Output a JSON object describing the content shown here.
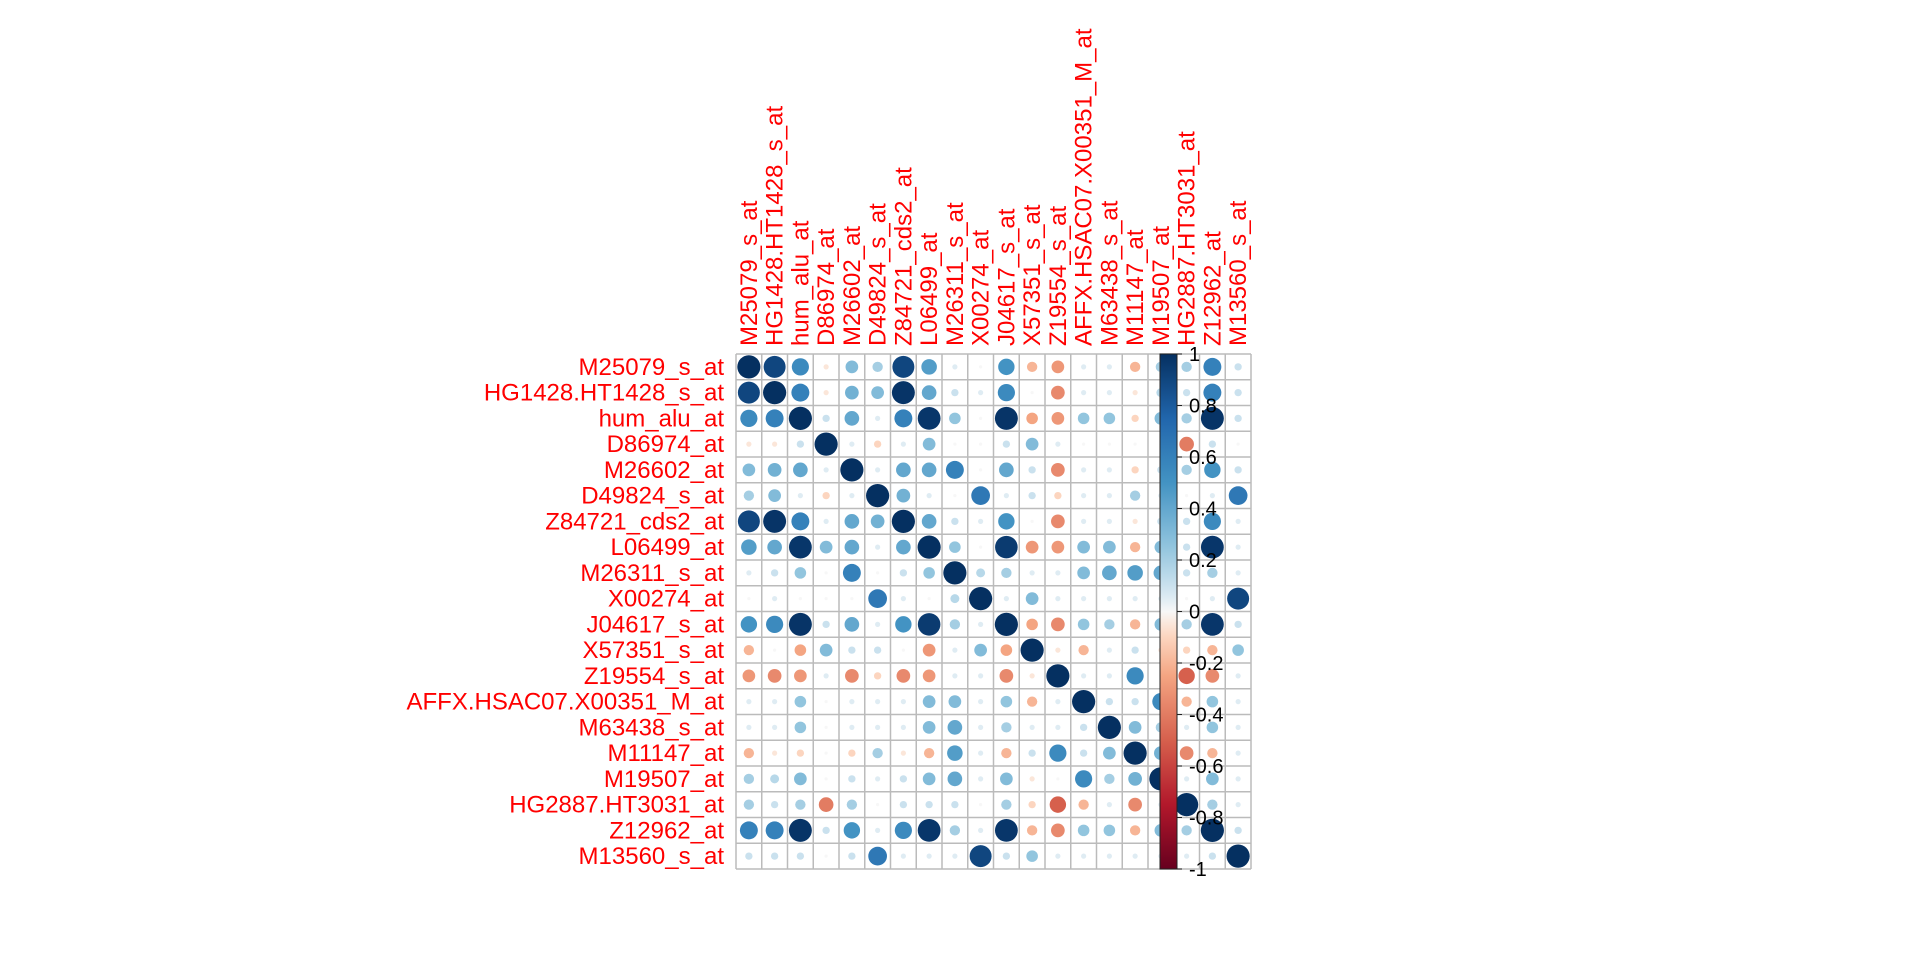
{
  "chart_data": {
    "type": "heatmap",
    "subtype": "correlation-circle",
    "variables": [
      "M25079_s_at",
      "HG1428.HT1428_s_at",
      "hum_alu_at",
      "D86974_at",
      "M26602_at",
      "D49824_s_at",
      "Z84721_cds2_at",
      "L06499_at",
      "M26311_s_at",
      "X00274_at",
      "J04617_s_at",
      "X57351_s_at",
      "Z19554_s_at",
      "AFFX.HSAC07.X00351_M_at",
      "M63438_s_at",
      "M11147_at",
      "M19507_at",
      "HG2887.HT3031_at",
      "Z12962_at",
      "M13560_s_at"
    ],
    "matrix": [
      [
        1.0,
        0.9,
        0.55,
        -0.05,
        0.3,
        0.2,
        0.9,
        0.45,
        0.05,
        0.0,
        0.5,
        -0.2,
        -0.3,
        0.05,
        0.05,
        -0.2,
        0.2,
        0.2,
        0.6,
        0.1
      ],
      [
        0.9,
        1.0,
        0.6,
        -0.05,
        0.35,
        0.3,
        0.98,
        0.4,
        0.1,
        0.05,
        0.55,
        0.0,
        -0.35,
        0.05,
        0.05,
        -0.05,
        0.15,
        0.1,
        0.6,
        0.1
      ],
      [
        0.55,
        0.6,
        1.0,
        0.1,
        0.4,
        0.05,
        0.6,
        0.97,
        0.25,
        0.0,
        0.98,
        -0.25,
        -0.3,
        0.25,
        0.25,
        -0.1,
        0.3,
        0.2,
        0.98,
        0.1
      ],
      [
        -0.05,
        -0.05,
        0.1,
        1.0,
        0.05,
        -0.1,
        0.05,
        0.3,
        0.0,
        0.0,
        0.1,
        0.3,
        0.05,
        0.0,
        0.0,
        0.0,
        0.0,
        -0.4,
        0.1,
        0.0
      ],
      [
        0.3,
        0.35,
        0.4,
        0.05,
        1.0,
        0.05,
        0.4,
        0.4,
        0.6,
        0.0,
        0.4,
        0.1,
        -0.35,
        0.05,
        0.05,
        -0.1,
        0.1,
        0.2,
        0.5,
        0.1
      ],
      [
        0.2,
        0.3,
        0.05,
        -0.1,
        0.05,
        1.0,
        0.35,
        0.05,
        0.0,
        0.65,
        0.05,
        0.1,
        -0.1,
        0.05,
        0.05,
        0.2,
        0.05,
        0.0,
        0.05,
        0.65
      ],
      [
        0.9,
        0.98,
        0.6,
        0.05,
        0.4,
        0.35,
        1.0,
        0.4,
        0.1,
        0.05,
        0.5,
        0.0,
        -0.35,
        0.05,
        0.05,
        -0.05,
        0.1,
        0.1,
        0.55,
        0.05
      ],
      [
        0.45,
        0.4,
        0.97,
        0.3,
        0.4,
        0.05,
        0.4,
        1.0,
        0.25,
        0.0,
        0.95,
        -0.3,
        -0.3,
        0.3,
        0.3,
        -0.2,
        0.3,
        0.1,
        0.97,
        0.05
      ],
      [
        0.05,
        0.1,
        0.25,
        0.0,
        0.6,
        0.0,
        0.1,
        0.25,
        1.0,
        0.15,
        0.2,
        0.05,
        0.05,
        0.3,
        0.4,
        0.45,
        0.4,
        0.1,
        0.2,
        0.05
      ],
      [
        0.0,
        0.05,
        0.0,
        0.0,
        0.0,
        0.65,
        0.05,
        0.0,
        0.15,
        1.0,
        0.05,
        0.3,
        0.05,
        0.05,
        0.05,
        0.05,
        0.05,
        0.0,
        0.05,
        0.9
      ],
      [
        0.5,
        0.55,
        0.98,
        0.1,
        0.4,
        0.05,
        0.5,
        0.95,
        0.2,
        0.05,
        1.0,
        -0.25,
        -0.35,
        0.25,
        0.2,
        -0.2,
        0.3,
        0.2,
        0.97,
        0.1
      ],
      [
        -0.2,
        0.0,
        -0.25,
        0.3,
        0.1,
        0.1,
        0.0,
        -0.3,
        0.05,
        0.3,
        -0.25,
        1.0,
        -0.05,
        -0.2,
        0.05,
        0.1,
        -0.05,
        -0.1,
        -0.2,
        0.25
      ],
      [
        -0.3,
        -0.35,
        -0.3,
        0.05,
        -0.35,
        -0.1,
        -0.35,
        -0.3,
        0.05,
        0.05,
        -0.35,
        -0.05,
        1.0,
        0.05,
        0.05,
        0.55,
        0.0,
        -0.5,
        -0.35,
        0.05
      ],
      [
        0.05,
        0.05,
        0.25,
        0.0,
        0.05,
        0.05,
        0.05,
        0.3,
        0.3,
        0.05,
        0.25,
        -0.2,
        0.05,
        1.0,
        0.1,
        0.1,
        0.55,
        -0.2,
        0.25,
        0.05
      ],
      [
        0.05,
        0.05,
        0.25,
        0.0,
        0.05,
        0.05,
        0.05,
        0.3,
        0.4,
        0.05,
        0.2,
        0.05,
        0.05,
        0.1,
        1.0,
        0.3,
        0.2,
        0.05,
        0.25,
        0.05
      ],
      [
        -0.2,
        -0.05,
        -0.1,
        0.0,
        -0.1,
        0.2,
        -0.05,
        -0.2,
        0.45,
        0.05,
        -0.2,
        0.1,
        0.55,
        0.1,
        0.3,
        1.0,
        0.35,
        -0.35,
        -0.2,
        0.05
      ],
      [
        0.2,
        0.15,
        0.3,
        0.0,
        0.1,
        0.05,
        0.1,
        0.3,
        0.4,
        0.05,
        0.3,
        -0.05,
        0.0,
        0.55,
        0.2,
        0.35,
        1.0,
        0.05,
        0.3,
        0.05
      ],
      [
        0.2,
        0.1,
        0.2,
        -0.4,
        0.2,
        0.0,
        0.1,
        0.1,
        0.1,
        0.0,
        0.2,
        -0.1,
        -0.5,
        -0.2,
        0.05,
        -0.35,
        0.05,
        1.0,
        0.2,
        0.05
      ],
      [
        0.6,
        0.6,
        0.98,
        0.1,
        0.5,
        0.05,
        0.55,
        0.97,
        0.2,
        0.05,
        0.97,
        -0.2,
        -0.35,
        0.25,
        0.25,
        -0.2,
        0.3,
        0.2,
        1.0,
        0.1
      ],
      [
        0.1,
        0.1,
        0.1,
        0.0,
        0.1,
        0.65,
        0.05,
        0.05,
        0.05,
        0.9,
        0.1,
        0.25,
        0.05,
        0.05,
        0.05,
        0.05,
        0.05,
        0.05,
        0.1,
        1.0
      ]
    ],
    "colorbar": {
      "range": [
        -1,
        1
      ],
      "tick_labels": [
        "1",
        "0.8",
        "0.6",
        "0.4",
        "0.2",
        "0",
        "-0.2",
        "-0.4",
        "-0.6",
        "-0.8",
        "-1"
      ]
    },
    "label_color": "#FF0000",
    "grid_color": "#BBBBBB"
  }
}
